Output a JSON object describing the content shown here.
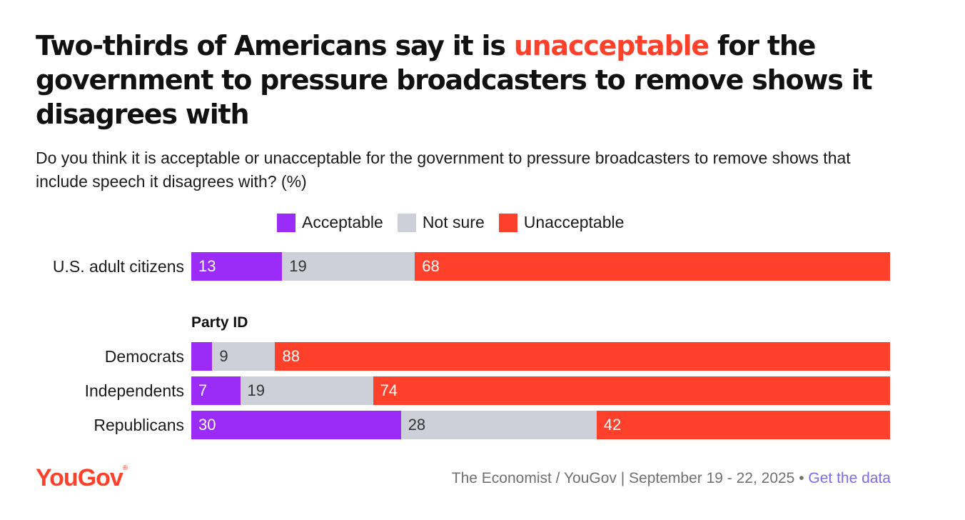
{
  "header": {
    "title_before": "Two-thirds of Americans say it is ",
    "title_highlight": "unacceptable",
    "title_after": " for the government to pressure broadcasters to remove shows it disagrees with",
    "subtitle": "Do you think it is acceptable or unacceptable for the government to pressure broadcasters to remove shows that include speech it disagrees with? (%)"
  },
  "colors": {
    "acceptable": "#9b2cf7",
    "not_sure": "#cdd0d8",
    "unacceptable": "#ff412c",
    "accent": "#ff412c",
    "link": "#7b6cf0"
  },
  "chart_data": {
    "type": "bar",
    "orientation": "horizontal",
    "stacked": true,
    "legend": [
      "Acceptable",
      "Not sure",
      "Unacceptable"
    ],
    "legend_position": "top",
    "group_label": "Party ID",
    "categories": [
      "U.S. adult citizens",
      "Democrats",
      "Independents",
      "Republicans"
    ],
    "series": [
      {
        "name": "Acceptable",
        "values": [
          13,
          3,
          7,
          30
        ]
      },
      {
        "name": "Not sure",
        "values": [
          19,
          9,
          19,
          28
        ]
      },
      {
        "name": "Unacceptable",
        "values": [
          68,
          88,
          74,
          42
        ]
      }
    ],
    "value_labels": [
      [
        "13",
        "19",
        "68"
      ],
      [
        "",
        "9",
        "88"
      ],
      [
        "7",
        "19",
        "74"
      ],
      [
        "30",
        "28",
        "42"
      ]
    ],
    "xlim": [
      0,
      100
    ]
  },
  "footer": {
    "logo": "YouGov",
    "logo_mark": "®",
    "source": "The Economist / YouGov | September 19 - 22, 2025 •",
    "link": "Get the data"
  }
}
